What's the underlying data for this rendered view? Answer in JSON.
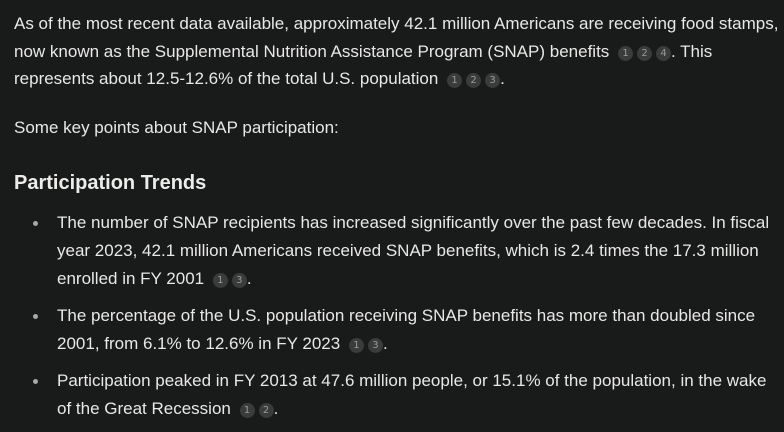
{
  "intro": {
    "text": "As of the most recent data available, approximately 42.1 million Americans are receiving food stamps, now known as the Supplemental Nutrition Assistance Program (SNAP) benefits",
    "citations_a": [
      "1",
      "2",
      "4"
    ],
    "text_b": ". This represents about 12.5-12.6% of the total U.S. population",
    "citations_b": [
      "1",
      "2",
      "3"
    ],
    "text_c": "."
  },
  "key_points_intro": "Some key points about SNAP participation:",
  "section": {
    "heading": "Participation Trends",
    "items": [
      {
        "text": "The number of SNAP recipients has increased significantly over the past few decades. In fiscal year 2023, 42.1 million Americans received SNAP benefits, which is 2.4 times the 17.3 million enrolled in FY 2001",
        "citations": [
          "1",
          "3"
        ],
        "end": "."
      },
      {
        "text": "The percentage of the U.S. population receiving SNAP benefits has more than doubled since 2001, from 6.1% to 12.6% in FY 2023",
        "citations": [
          "1",
          "3"
        ],
        "end": "."
      },
      {
        "text": "Participation peaked in FY 2013 at 47.6 million people, or 15.1% of the population, in the wake of the Great Recession",
        "citations": [
          "1",
          "2"
        ],
        "end": "."
      }
    ]
  },
  "colors": {
    "background": "#191a1a",
    "text": "#e8e8e6",
    "citation_bg": "#3a3b3b",
    "citation_text": "#9a9a98"
  }
}
